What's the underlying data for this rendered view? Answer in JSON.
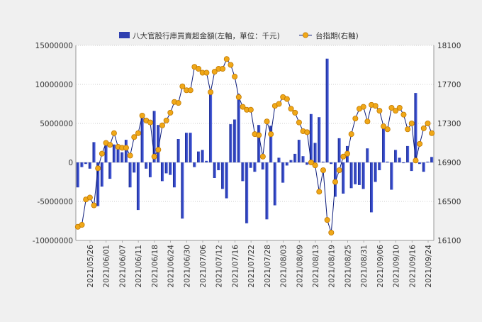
{
  "chart_data": {
    "type": "bar+line",
    "title": "",
    "xlabel": "",
    "ylabel": "",
    "legend": {
      "position": "top",
      "entries": [
        "八大官股行庫買賣超金額(左軸，單位：千元)",
        "台指期(右軸)"
      ]
    },
    "grid": true,
    "ylim_left": [
      -10000000,
      15000000
    ],
    "ylim_right": [
      16100,
      18100
    ],
    "yticks_left": [
      "15000000",
      "10000000",
      "5000000",
      "0",
      "-5000000",
      "-10000000"
    ],
    "yticks_right": [
      "18100",
      "17700",
      "17300",
      "16900",
      "16500",
      "16100"
    ],
    "xtick_labels": [
      "2021/05/26",
      "2021/06/01",
      "2021/06/07",
      "2021/06/11",
      "2021/06/18",
      "2021/06/24",
      "2021/06/30",
      "2021/07/06",
      "2021/07/12",
      "2021/07/16",
      "2021/07/22",
      "2021/07/28",
      "2021/08/03",
      "2021/08/09",
      "2021/08/13",
      "2021/08/19",
      "2021/08/25",
      "2021/08/31",
      "2021/09/06",
      "2021/09/10",
      "2021/09/16",
      "2021/09/24"
    ],
    "series": [
      {
        "name": "八大官股行庫買賣超金額(左軸，單位：千元)",
        "axis": "left",
        "type": "bar",
        "color": "#2f3fb0",
        "values": [
          -3200000,
          -600000,
          -200000,
          -800000,
          2600000,
          -5600000,
          -3100000,
          2500000,
          -2100000,
          2300000,
          1700000,
          1300000,
          2900000,
          -3200000,
          -1300000,
          -6100000,
          5800000,
          -800000,
          -1900000,
          6600000,
          4800000,
          -2400000,
          -1400000,
          -1600000,
          -3200000,
          3000000,
          -7200000,
          3800000,
          3800000,
          -600000,
          1400000,
          1600000,
          200000,
          9200000,
          -2000000,
          -1000000,
          -3400000,
          -4600000,
          4900000,
          5500000,
          8800000,
          -2400000,
          -7800000,
          -700000,
          -1200000,
          4800000,
          -900000,
          -7300000,
          4700000,
          -5500000,
          600000,
          -2600000,
          -400000,
          300000,
          1100000,
          2900000,
          800000,
          -300000,
          6200000,
          2500000,
          5800000,
          100000,
          13300000,
          -200000,
          -4400000,
          3100000,
          -4000000,
          2100000,
          -3300000,
          -2800000,
          -2900000,
          -3400000,
          1800000,
          -6400000,
          -2500000,
          -1000000,
          4700000,
          100000,
          -3500000,
          1600000,
          600000,
          -100000,
          2100000,
          -1100000,
          8900000,
          -200000,
          -1200000,
          100000,
          700000
        ]
      },
      {
        "name": "台指期(右軸)",
        "axis": "right",
        "type": "line",
        "color": "#f0a818",
        "line_color": "#0a1a7a",
        "values": [
          16240,
          16260,
          16520,
          16540,
          16460,
          16840,
          16990,
          17100,
          17080,
          17200,
          17060,
          17050,
          17050,
          16970,
          17160,
          17200,
          17380,
          17330,
          17310,
          16960,
          17030,
          17280,
          17330,
          17410,
          17520,
          17510,
          17680,
          17640,
          17640,
          17880,
          17860,
          17820,
          17820,
          17620,
          17830,
          17860,
          17860,
          17960,
          17900,
          17780,
          17570,
          17470,
          17440,
          17440,
          17190,
          17180,
          16960,
          17320,
          17190,
          17480,
          17500,
          17570,
          17550,
          17450,
          17410,
          17310,
          17220,
          17210,
          16900,
          16870,
          16600,
          16820,
          16310,
          16180,
          16700,
          16820,
          16960,
          16990,
          17190,
          17350,
          17450,
          17470,
          17320,
          17490,
          17480,
          17430,
          17270,
          17240,
          17460,
          17430,
          17460,
          17390,
          17240,
          17300,
          16920,
          17090,
          17250,
          17300,
          17200
        ]
      }
    ]
  }
}
